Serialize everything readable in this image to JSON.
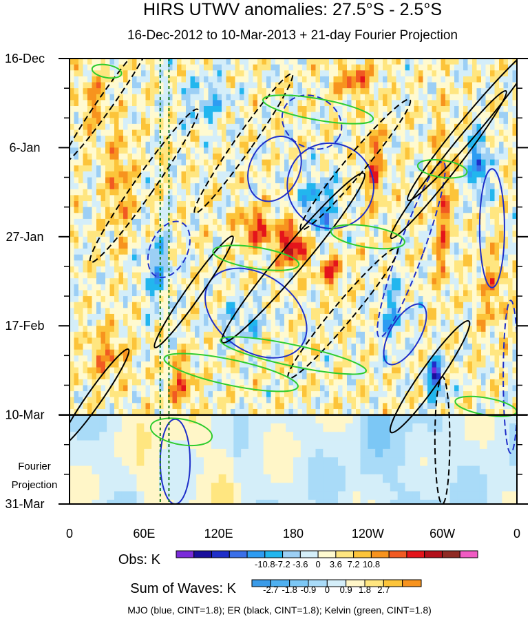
{
  "chart_data": {
    "type": "heatmap",
    "title": "HIRS UTWV anomalies: 27.5°S - 2.5°S",
    "subtitle": "16-Dec-2012 to 10-Mar-2013 + 21-day Fourier Projection",
    "x_tick_labels": [
      "0",
      "60E",
      "120E",
      "180",
      "120W",
      "60W",
      "0"
    ],
    "x_range_deg": [
      0,
      360
    ],
    "y_tick_labels": [
      "16-Dec",
      "6-Jan",
      "27-Jan",
      "17-Feb",
      "10-Mar",
      "31-Mar"
    ],
    "y_range_days": [
      0,
      105
    ],
    "observation_end_label": "10-Mar",
    "projection_label_line1": "Fourier",
    "projection_label_line2": "Projection",
    "vertical_reference_lines_deg": [
      73,
      80
    ],
    "obs_colorbar": {
      "label": "Obs: K",
      "tick_labels": [
        "-10.8",
        "-7.2",
        "-3.6",
        "0",
        "3.6",
        "7.2",
        "10.8"
      ],
      "colors": [
        "#7a2bd9",
        "#1a0f9c",
        "#1f2fc9",
        "#3a6fe8",
        "#2e9cf2",
        "#22b6ee",
        "#9ccff5",
        "#d4eef9",
        "#fffad0",
        "#ffe680",
        "#fcc43a",
        "#f7931e",
        "#f15a22",
        "#e4141b",
        "#b3101b",
        "#8f2a24",
        "#f05bc3"
      ]
    },
    "waves_colorbar": {
      "label": "Sum of Waves: K",
      "tick_labels": [
        "-2.7",
        "-1.8",
        "-0.9",
        "0",
        "0.9",
        "1.8",
        "2.7"
      ],
      "colors": [
        "#3a9be8",
        "#4fb0f0",
        "#7cc7f5",
        "#a9dbf8",
        "#d4eef9",
        "#fff6c8",
        "#ffe680",
        "#fcc43a",
        "#f7931e"
      ]
    },
    "footer": "MJO (blue, CINT=1.8); ER (black, CINT=1.8); Kelvin (green, CINT=1.8)",
    "contour_sets": [
      {
        "name": "MJO",
        "color": "#1f2fc9",
        "cint": 1.8
      },
      {
        "name": "ER",
        "color": "#000000",
        "cint": 1.8
      },
      {
        "name": "Kelvin",
        "color": "#2ecc2e",
        "cint": 1.8
      }
    ]
  }
}
